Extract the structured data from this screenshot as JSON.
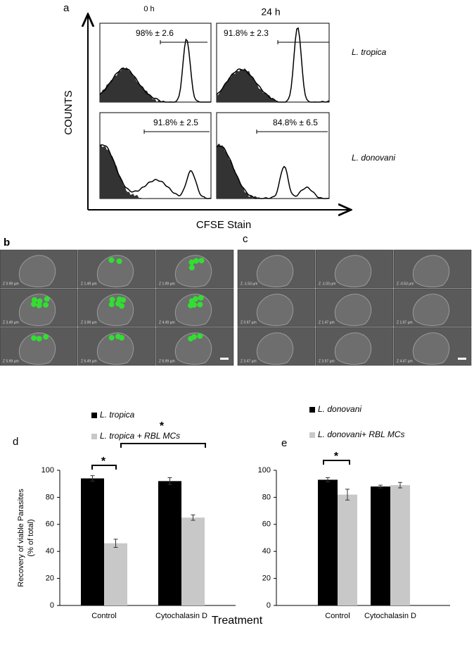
{
  "panel_a": {
    "label": "a",
    "timepoints": [
      "0 h",
      "24 h"
    ],
    "ylabel": "COUNTS",
    "xlabel": "CFSE Stain",
    "species": [
      "L. tropica",
      "L. donovani"
    ],
    "gates": [
      [
        "98% ± 2.6",
        "91.8% ± 2.3"
      ],
      [
        "91.8% ± 2.5",
        "84.8% ± 6.5"
      ]
    ]
  },
  "panel_b": {
    "label": "b",
    "z_labels": [
      "Z 0.99 µm",
      "Z 1.49 µm",
      "Z 1.99 µm",
      "Z 3.49 µm",
      "Z 3.99 µm",
      "Z 4.49 µm",
      "Z 5.99 µm",
      "Z 6.49 µm",
      "Z 6.99 µm"
    ]
  },
  "panel_c": {
    "label": "c",
    "z_labels": [
      "Z -1.53 µm",
      "Z -1.03 µm",
      "Z -0.53 µm",
      "Z 0.97 µm",
      "Z 1.47 µm",
      "Z 1.97 µm",
      "Z 3.47 µm",
      "Z 3.97 µm",
      "Z 4.47 µm"
    ]
  },
  "chart_data": [
    {
      "type": "bar",
      "label": "d",
      "ylabel": [
        "Recovery of viable Parasites",
        "(% of total)"
      ],
      "categories": [
        "Control",
        "Cytochalasin D"
      ],
      "series": [
        {
          "name": "L. tropica",
          "color": "#000000",
          "values": [
            94,
            92
          ],
          "errors": [
            2,
            2.5
          ]
        },
        {
          "name": "L. tropica + RBL MCs",
          "color": "#c8c8c8",
          "values": [
            46,
            65
          ],
          "errors": [
            3,
            2
          ]
        }
      ],
      "ylim": [
        0,
        100
      ],
      "yticks": [
        0,
        20,
        40,
        60,
        80,
        100
      ],
      "annotations": [
        "*",
        "*"
      ]
    },
    {
      "type": "bar",
      "label": "e",
      "categories": [
        "Control",
        "Cytochalasin D"
      ],
      "series": [
        {
          "name": "L. donovani",
          "color": "#000000",
          "values": [
            93,
            88
          ],
          "errors": [
            1.5,
            1
          ]
        },
        {
          "name": "L. donovani+ RBL MCs",
          "color": "#c8c8c8",
          "values": [
            82,
            89
          ],
          "errors": [
            4,
            2
          ]
        }
      ],
      "ylim": [
        0,
        100
      ],
      "yticks": [
        0,
        20,
        40,
        60,
        80,
        100
      ],
      "annotations": [
        "*"
      ]
    }
  ],
  "xlabel": "Treatment"
}
